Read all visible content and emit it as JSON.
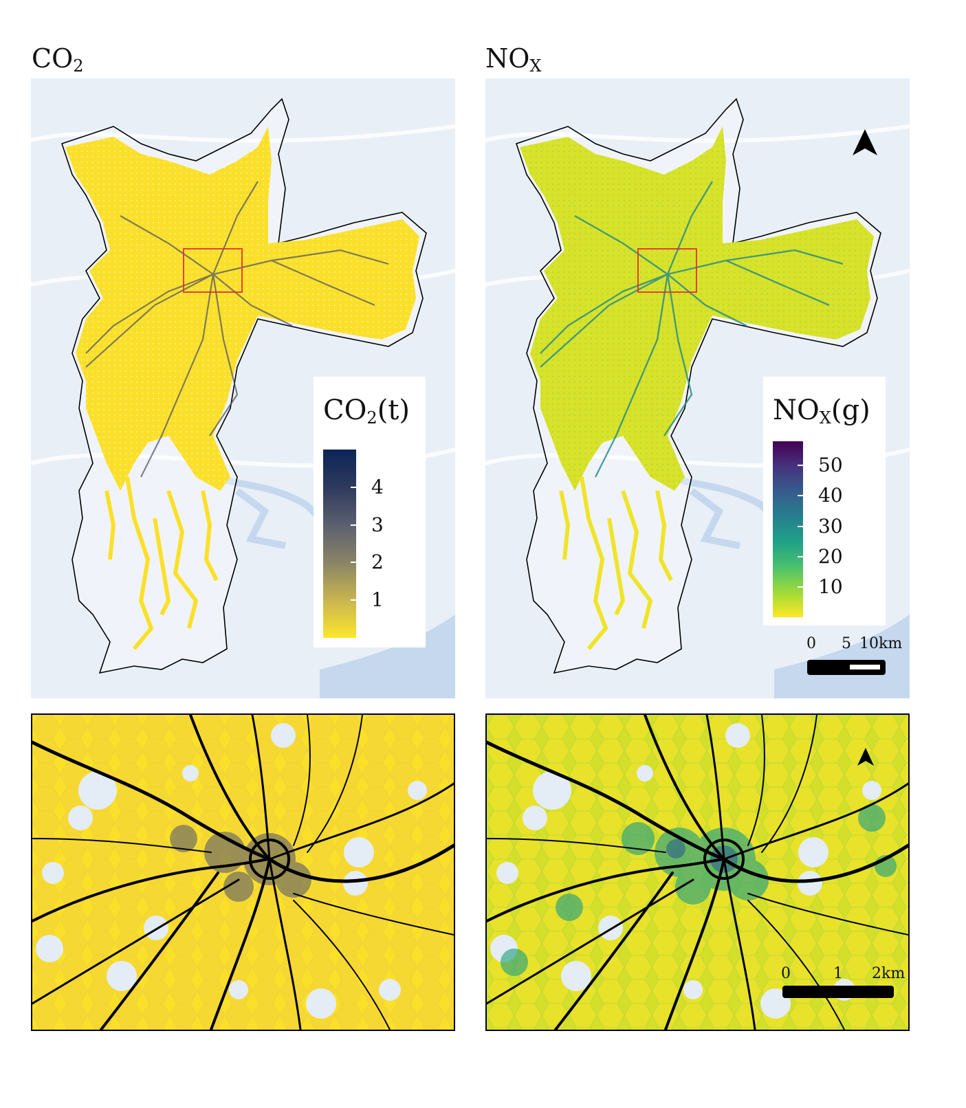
{
  "panels": {
    "co2_title": {
      "main": "CO",
      "sub": "2"
    },
    "nox_title": {
      "main": "NO",
      "sub": "X"
    }
  },
  "legend_co2": {
    "title_main": "CO",
    "title_sub": "2",
    "title_unit": "(t)",
    "ticks": [
      "4",
      "3",
      "2",
      "1"
    ],
    "tick_values": [
      4,
      3,
      2,
      1
    ],
    "range": [
      0,
      5
    ],
    "colors": [
      "#fde62d",
      "#c8b550",
      "#8a8465",
      "#5b6070",
      "#2e3a5e",
      "#0a2558"
    ]
  },
  "legend_nox": {
    "title_main": "NO",
    "title_sub": "X",
    "title_unit": "(g)",
    "ticks": [
      "50",
      "40",
      "30",
      "20",
      "10"
    ],
    "tick_values": [
      50,
      40,
      30,
      20,
      10
    ],
    "range": [
      0,
      58
    ],
    "colors": [
      "#fde725",
      "#a0da39",
      "#4ac16d",
      "#1fa187",
      "#277f8e",
      "#365c8d",
      "#46327e",
      "#440154"
    ]
  },
  "scalebar_main": {
    "labels": [
      "0",
      "5",
      "10km"
    ]
  },
  "scalebar_zoom": {
    "labels": [
      "0",
      "1",
      "2km"
    ]
  },
  "icons": {
    "north_arrow": "north-arrow-icon"
  },
  "colors": {
    "boundary": "#000000",
    "inset_box": "#e53030",
    "base_map": "#e8eef6",
    "water": "#c5d8ee"
  }
}
